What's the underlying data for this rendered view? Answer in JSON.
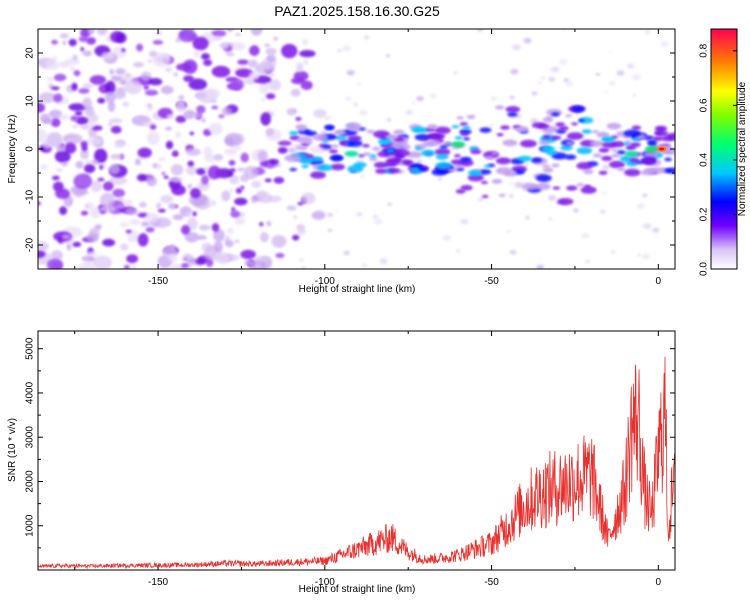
{
  "title": "PAZ1.2025.158.16.30.G25",
  "colors": {
    "snr_line": "#e8312e",
    "spectrum_low": "#c8a8f0",
    "spectrum_mid": "#7b17e6",
    "spectrum_high": "#00a0ff"
  },
  "chart_data": [
    {
      "type": "heatmap",
      "title": "PAZ1.2025.158.16.30.G25",
      "xlabel": "Height of straight line (km)",
      "ylabel": "Frequency (Hz)",
      "xlim": [
        -186,
        5
      ],
      "ylim": [
        -25,
        25
      ],
      "x_ticks": [
        -150,
        -100,
        -50,
        0
      ],
      "y_ticks": [
        -20,
        -10,
        0,
        10,
        20
      ],
      "colorbar": {
        "label": "Normalized spectral amplitude",
        "range": [
          0,
          0.88
        ],
        "ticks": [
          0.0,
          0.2,
          0.4,
          0.6,
          0.8
        ],
        "colormap": "rainbow"
      },
      "features": [
        {
          "description": "noise blobs",
          "x_range": [
            -186,
            -110
          ],
          "y_range": [
            -25,
            25
          ],
          "amplitude": 0.1
        },
        {
          "description": "main frequency trace",
          "x_range": [
            -110,
            5
          ],
          "center_freq_hz": 0,
          "amplitude_peak": 0.75,
          "peak_x": 1
        }
      ],
      "grid": false
    },
    {
      "type": "line",
      "xlabel": "Height of straight line (km)",
      "ylabel": "SNR (10 * v/v)",
      "xlim": [
        -186,
        5
      ],
      "ylim": [
        0,
        5400
      ],
      "x_ticks": [
        -150,
        -100,
        -50,
        0
      ],
      "y_ticks": [
        1000,
        2000,
        3000,
        4000,
        5000
      ],
      "grid": false,
      "series": [
        {
          "x": [
            -186,
            -180,
            -170,
            -160,
            -150,
            -140,
            -130,
            -120,
            -110,
            -100,
            -95,
            -90,
            -85,
            -80,
            -75,
            -70,
            -65,
            -60,
            -55,
            -50,
            -45,
            -40,
            -35,
            -30,
            -25,
            -20,
            -15,
            -10,
            -8,
            -6,
            -4,
            -2,
            0,
            2,
            3,
            4,
            5
          ],
          "y": [
            120,
            140,
            130,
            150,
            160,
            170,
            220,
            200,
            260,
            300,
            500,
            700,
            900,
            1100,
            600,
            350,
            400,
            500,
            700,
            900,
            1500,
            2200,
            2600,
            2800,
            3000,
            3200,
            1000,
            2700,
            4800,
            5100,
            2500,
            1800,
            3800,
            5400,
            1200,
            2400,
            2800
          ]
        }
      ]
    }
  ]
}
